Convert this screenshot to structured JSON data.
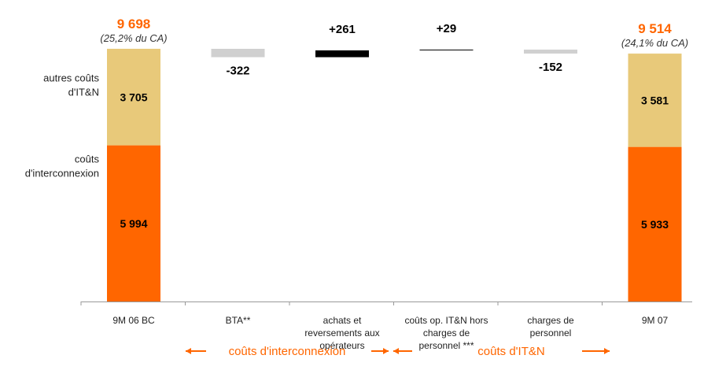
{
  "colors": {
    "interconnexion": "#ff6600",
    "it_n": "#e8c97a",
    "negative": "#d0d0d0",
    "positive": "#000000",
    "total_text": "#ff6600",
    "axis": "#999999"
  },
  "side_labels": {
    "it_n": [
      "autres coûts",
      "d'IT&N"
    ],
    "interconnexion": [
      "coûts",
      "d'interconnexion"
    ]
  },
  "arrows": {
    "interconnexion": "coûts d'interconnexion",
    "it_n": "coûts d'IT&N"
  },
  "chart_data": {
    "type": "bar",
    "subtype": "waterfall",
    "categories": [
      [
        "9M 06 BC"
      ],
      [
        "BTA**"
      ],
      [
        "achats et",
        "reversements aux",
        "opérateurs"
      ],
      [
        "coûts op. IT&N hors",
        "charges de",
        "personnel ***"
      ],
      [
        "charges de",
        "personnel"
      ],
      [
        "9M 07"
      ]
    ],
    "start": {
      "total": 9698,
      "total_label": "9 698",
      "pct_label": "(25,2% du CA)",
      "segments": [
        {
          "name": "interconnexion",
          "value": 5994,
          "label": "5 994"
        },
        {
          "name": "it_n",
          "value": 3705,
          "label": "3 705"
        }
      ]
    },
    "deltas": [
      {
        "value": -322,
        "label": "-322"
      },
      {
        "value": 261,
        "label": "+261"
      },
      {
        "value": 29,
        "label": "+29"
      },
      {
        "value": -152,
        "label": "-152"
      }
    ],
    "end": {
      "total": 9514,
      "total_label": "9 514",
      "pct_label": "(24,1% du CA)",
      "segments": [
        {
          "name": "interconnexion",
          "value": 5933,
          "label": "5 933"
        },
        {
          "name": "it_n",
          "value": 3581,
          "label": "3 581"
        }
      ]
    },
    "ylim": [
      0,
      10000
    ],
    "grid": false,
    "legend": "none"
  }
}
